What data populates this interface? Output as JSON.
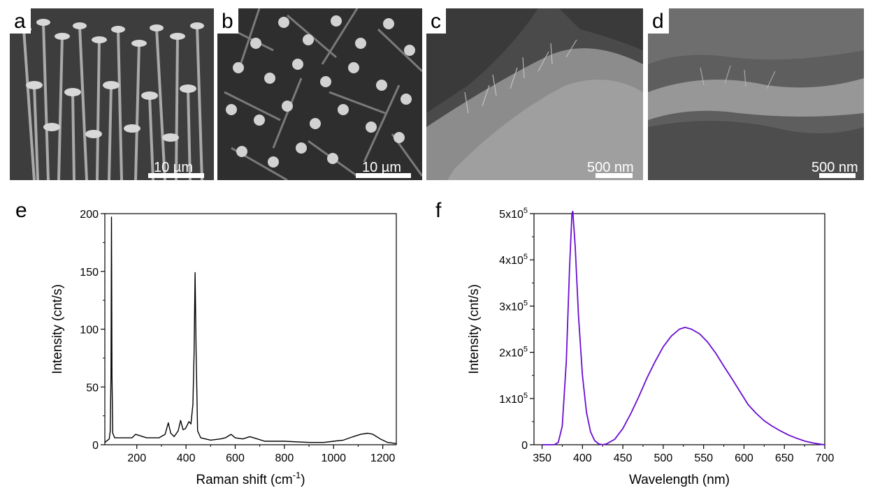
{
  "panels": {
    "a": {
      "label": "a",
      "scale": "10 µm"
    },
    "b": {
      "label": "b",
      "scale": "10 µm"
    },
    "c": {
      "label": "c",
      "scale": "500 nm"
    },
    "d": {
      "label": "d",
      "scale": "500 nm"
    },
    "e": {
      "label": "e"
    },
    "f": {
      "label": "f"
    }
  },
  "colors": {
    "raman_line": "#000000",
    "pl_line": "#6a0dd0"
  },
  "chart_data": [
    {
      "panel": "e",
      "type": "line",
      "xlabel": "Raman shift (cm-1)",
      "xlabel_parts": {
        "base": "Raman shift (cm",
        "sup": "-1",
        "end": ")"
      },
      "ylabel": "Intensity (cnt/s)",
      "xlim": [
        70,
        1255
      ],
      "ylim": [
        0,
        200
      ],
      "xticks": [
        200,
        400,
        600,
        800,
        1000,
        1200
      ],
      "yticks": [
        0,
        50,
        100,
        150,
        200
      ],
      "grid": false,
      "series": [
        {
          "values": [
            [
              70,
              2
            ],
            [
              88,
              5
            ],
            [
              92,
              12
            ],
            [
              95,
              60
            ],
            [
              97,
              197
            ],
            [
              99,
              60
            ],
            [
              102,
              10
            ],
            [
              110,
              6
            ],
            [
              150,
              6
            ],
            [
              180,
              6
            ],
            [
              195,
              9
            ],
            [
              210,
              8
            ],
            [
              240,
              6
            ],
            [
              290,
              6
            ],
            [
              315,
              9
            ],
            [
              328,
              19
            ],
            [
              338,
              10
            ],
            [
              352,
              7
            ],
            [
              368,
              12
            ],
            [
              378,
              21
            ],
            [
              388,
              13
            ],
            [
              398,
              14
            ],
            [
              412,
              20
            ],
            [
              420,
              18
            ],
            [
              428,
              35
            ],
            [
              433,
              80
            ],
            [
              437,
              149
            ],
            [
              441,
              80
            ],
            [
              447,
              12
            ],
            [
              460,
              6
            ],
            [
              500,
              4
            ],
            [
              540,
              5
            ],
            [
              560,
              6
            ],
            [
              583,
              9
            ],
            [
              600,
              6
            ],
            [
              630,
              5
            ],
            [
              660,
              7
            ],
            [
              690,
              5
            ],
            [
              720,
              3
            ],
            [
              800,
              3
            ],
            [
              900,
              2
            ],
            [
              960,
              2
            ],
            [
              1000,
              3
            ],
            [
              1040,
              4
            ],
            [
              1080,
              7
            ],
            [
              1110,
              9
            ],
            [
              1140,
              10
            ],
            [
              1160,
              9
            ],
            [
              1190,
              5
            ],
            [
              1220,
              2
            ],
            [
              1255,
              1
            ]
          ]
        }
      ]
    },
    {
      "panel": "f",
      "type": "line",
      "xlabel": "Wavelength (nm)",
      "ylabel": "Intensity (cnt/s)",
      "xlim": [
        340,
        700
      ],
      "ylim": [
        0,
        500000
      ],
      "xticks": [
        350,
        400,
        450,
        500,
        550,
        600,
        650,
        700
      ],
      "yticks": [
        0,
        100000,
        200000,
        300000,
        400000,
        500000
      ],
      "ytick_labels": [
        {
          "base": "0",
          "exp": ""
        },
        {
          "base": "1x10",
          "exp": "5"
        },
        {
          "base": "2x10",
          "exp": "5"
        },
        {
          "base": "3x10",
          "exp": "5"
        },
        {
          "base": "4x10",
          "exp": "5"
        },
        {
          "base": "5x10",
          "exp": "5"
        }
      ],
      "grid": false,
      "series": [
        {
          "values": [
            [
              350,
              0
            ],
            [
              365,
              0
            ],
            [
              370,
              5000
            ],
            [
              375,
              40000
            ],
            [
              380,
              180000
            ],
            [
              384,
              380000
            ],
            [
              387,
              500000
            ],
            [
              388,
              505000
            ],
            [
              391,
              430000
            ],
            [
              395,
              280000
            ],
            [
              400,
              150000
            ],
            [
              405,
              70000
            ],
            [
              410,
              28000
            ],
            [
              415,
              9000
            ],
            [
              420,
              2000
            ],
            [
              425,
              0
            ],
            [
              430,
              2000
            ],
            [
              440,
              12000
            ],
            [
              450,
              35000
            ],
            [
              460,
              68000
            ],
            [
              470,
              105000
            ],
            [
              480,
              145000
            ],
            [
              490,
              180000
            ],
            [
              500,
              212000
            ],
            [
              510,
              235000
            ],
            [
              520,
              250000
            ],
            [
              527,
              254000
            ],
            [
              535,
              250000
            ],
            [
              545,
              240000
            ],
            [
              555,
              222000
            ],
            [
              565,
              198000
            ],
            [
              575,
              170000
            ],
            [
              585,
              143000
            ],
            [
              595,
              115000
            ],
            [
              605,
              87000
            ],
            [
              615,
              68000
            ],
            [
              625,
              52000
            ],
            [
              635,
              40000
            ],
            [
              645,
              30000
            ],
            [
              655,
              21000
            ],
            [
              665,
              14000
            ],
            [
              675,
              8000
            ],
            [
              685,
              4000
            ],
            [
              695,
              1000
            ],
            [
              700,
              0
            ]
          ]
        }
      ]
    }
  ]
}
